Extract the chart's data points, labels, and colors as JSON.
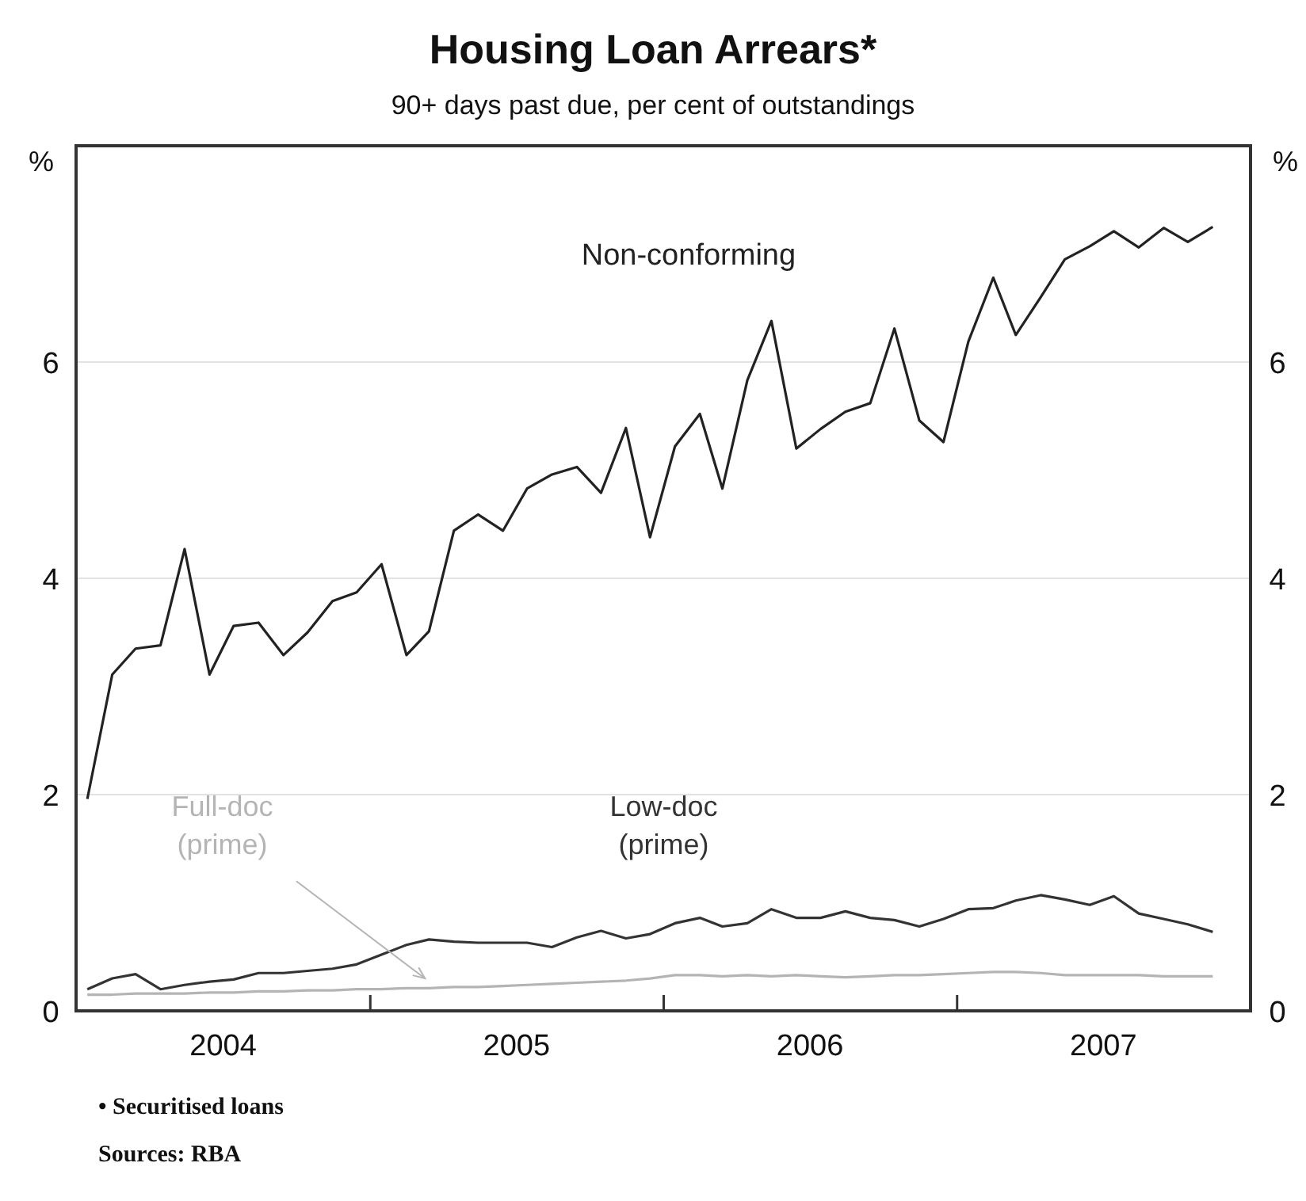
{
  "chart_data": {
    "type": "line",
    "title": "Housing Loan Arrears*",
    "subtitle": "90+ days past due, per cent of outstandings",
    "ylabel": "%",
    "y2label": "%",
    "x": [
      "2004-01-15",
      "2004-02-15",
      "2004-03-15",
      "2004-04-15",
      "2004-05-15",
      "2004-06-15",
      "2004-07-15",
      "2004-08-15",
      "2004-09-15",
      "2004-10-15",
      "2004-11-15",
      "2004-12-15",
      "2005-01-15",
      "2005-02-15",
      "2005-03-15",
      "2005-04-15",
      "2005-05-15",
      "2005-06-15",
      "2005-07-15",
      "2005-08-15",
      "2005-09-15",
      "2005-10-15",
      "2005-11-15",
      "2005-12-15",
      "2006-01-15",
      "2006-02-15",
      "2006-03-15",
      "2006-04-15",
      "2006-05-15",
      "2006-06-15",
      "2006-07-15",
      "2006-08-15",
      "2006-09-15",
      "2006-10-15",
      "2006-11-15",
      "2006-12-15",
      "2007-01-15",
      "2007-02-15",
      "2007-03-15",
      "2007-04-15",
      "2007-05-15",
      "2007-06-15",
      "2007-07-15",
      "2007-08-15",
      "2007-09-15",
      "2007-10-15",
      "2007-11-15"
    ],
    "series": [
      {
        "name": "Non-conforming",
        "color": "#222222",
        "values": [
          1.96,
          3.11,
          3.35,
          3.38,
          4.27,
          3.11,
          3.56,
          3.59,
          3.29,
          3.5,
          3.79,
          3.87,
          4.13,
          3.29,
          3.51,
          4.44,
          4.59,
          4.44,
          4.83,
          4.96,
          5.03,
          4.79,
          5.39,
          4.38,
          5.22,
          5.52,
          4.83,
          5.83,
          6.38,
          5.2,
          5.38,
          5.54,
          5.62,
          6.31,
          5.46,
          5.26,
          6.19,
          6.78,
          6.25,
          6.6,
          6.95,
          7.07,
          7.21,
          7.06,
          7.24,
          7.11,
          7.25
        ]
      },
      {
        "name": "Full-doc\n(prime)",
        "color": "#b4b4b4",
        "values": [
          0.15,
          0.15,
          0.16,
          0.16,
          0.16,
          0.17,
          0.17,
          0.18,
          0.18,
          0.19,
          0.19,
          0.2,
          0.2,
          0.21,
          0.21,
          0.22,
          0.22,
          0.23,
          0.24,
          0.25,
          0.26,
          0.27,
          0.28,
          0.3,
          0.33,
          0.33,
          0.32,
          0.33,
          0.32,
          0.33,
          0.32,
          0.31,
          0.32,
          0.33,
          0.33,
          0.34,
          0.35,
          0.36,
          0.36,
          0.35,
          0.33,
          0.33,
          0.33,
          0.33,
          0.32,
          0.32,
          0.32
        ]
      },
      {
        "name": "Low-doc\n(prime)",
        "color": "#333333",
        "values": [
          0.2,
          0.3,
          0.34,
          0.2,
          0.24,
          0.27,
          0.29,
          0.35,
          0.35,
          0.37,
          0.39,
          0.43,
          0.52,
          0.61,
          0.66,
          0.64,
          0.63,
          0.63,
          0.63,
          0.59,
          0.68,
          0.74,
          0.67,
          0.71,
          0.81,
          0.86,
          0.78,
          0.81,
          0.94,
          0.86,
          0.86,
          0.92,
          0.86,
          0.84,
          0.78,
          0.85,
          0.94,
          0.95,
          1.02,
          1.07,
          1.03,
          0.98,
          1.06,
          0.9,
          0.85,
          0.8,
          0.73
        ]
      }
    ],
    "xlim": [
      "2004-01-01",
      "2008-01-01"
    ],
    "xticks": [
      {
        "value": "2004-07-02",
        "label": "2004"
      },
      {
        "value": "2005-01-01",
        "label": null
      },
      {
        "value": "2005-07-02",
        "label": "2005"
      },
      {
        "value": "2006-01-01",
        "label": null
      },
      {
        "value": "2006-07-02",
        "label": "2006"
      },
      {
        "value": "2007-01-01",
        "label": null
      },
      {
        "value": "2007-07-02",
        "label": "2007"
      }
    ],
    "ylim": [
      0,
      8
    ],
    "yticks": [
      0,
      2,
      4,
      6
    ],
    "y2lim": [
      0,
      8
    ],
    "y2ticks": [
      0,
      2,
      4,
      6
    ],
    "grid": "y",
    "line_style": "solid",
    "annotations": [
      "• Securitised loans",
      "Sources: RBA"
    ]
  }
}
